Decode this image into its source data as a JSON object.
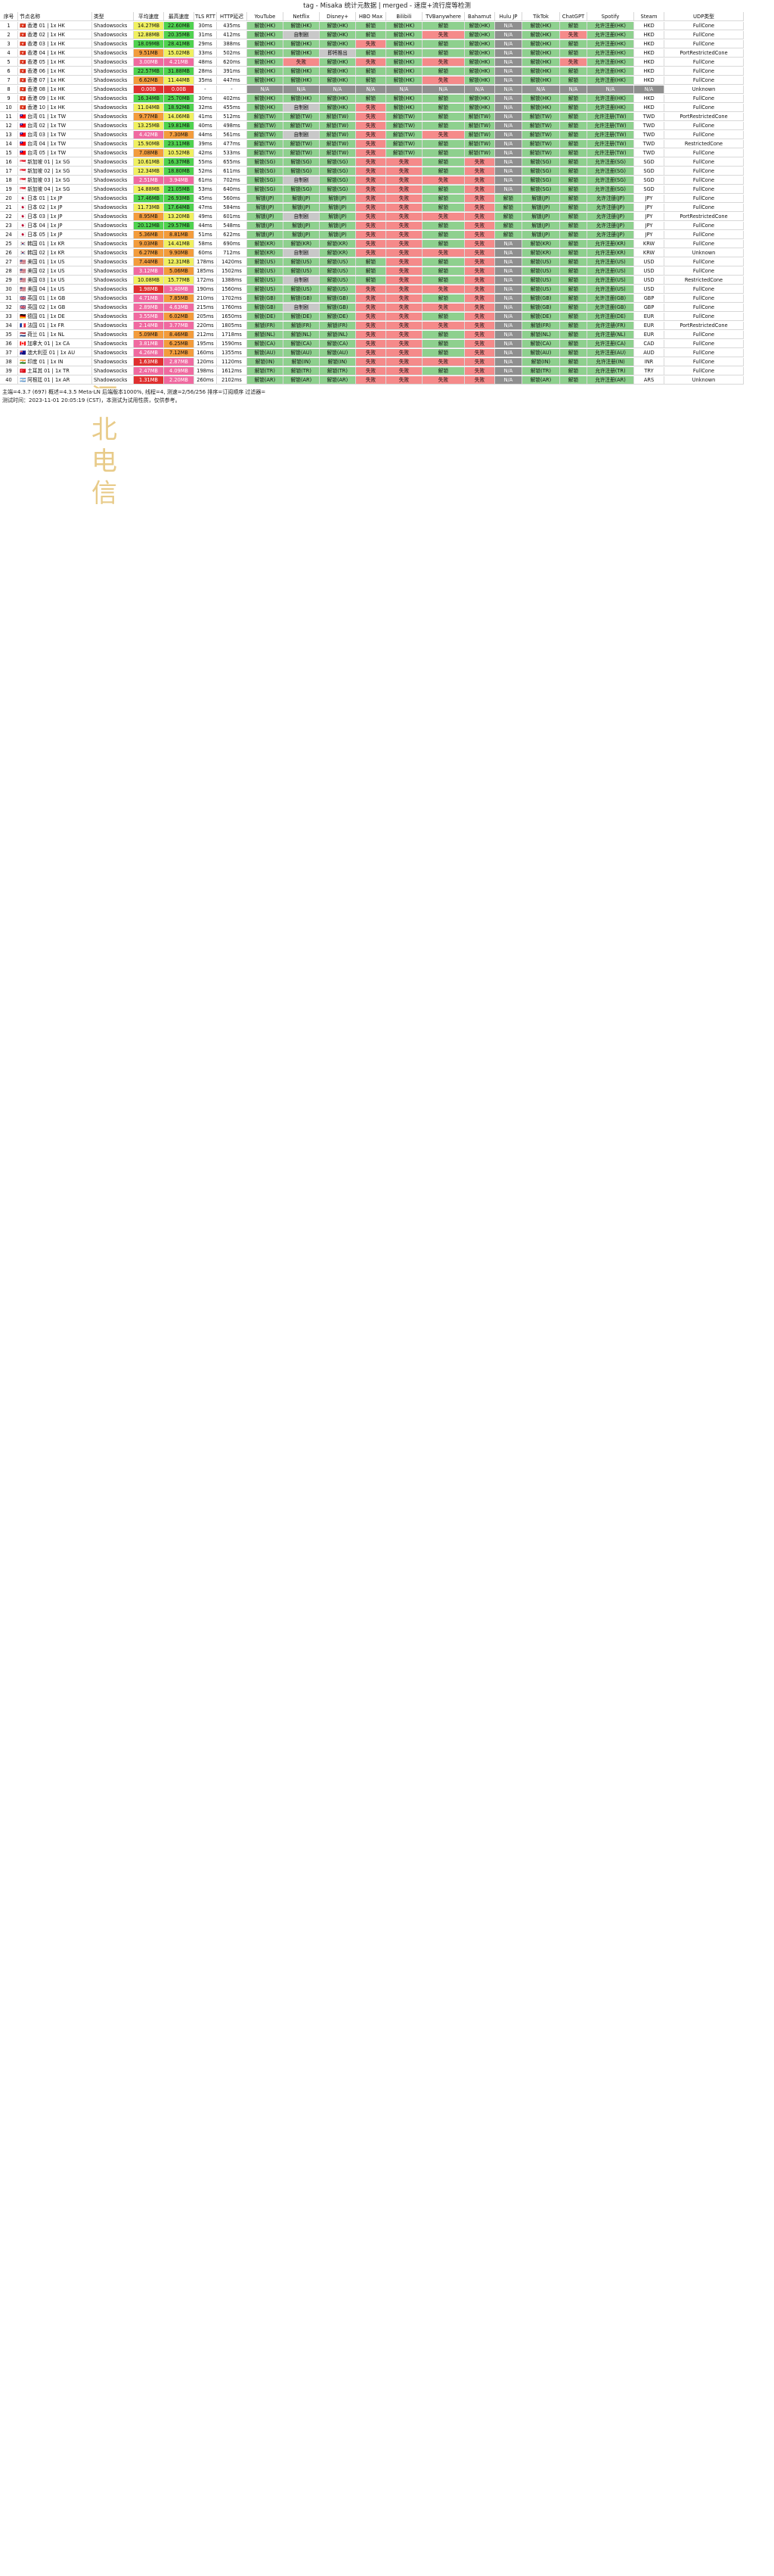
{
  "report": {
    "title": "tag - Misaka 统计元数据 | merged - 速度+流行度等检测",
    "watermark": "河北电信",
    "columns": [
      "序号",
      "节点名称",
      "类型",
      "平均速度",
      "最高速度",
      "TLS RTT",
      "HTTP延迟",
      "YouTube",
      "Netflix",
      "Disney+",
      "HBO Max",
      "Bilibili",
      "TVBanywhere",
      "Bahamut",
      "Hulu JP",
      "TikTok",
      "ChatGPT",
      "Spotify",
      "Steam",
      "UDP类型"
    ],
    "rows": [
      [
        "1",
        "🇭🇰 香港 01 | 1x HK",
        "Shadowsocks",
        "14.27MB",
        "22.60MB",
        "30ms",
        "435ms",
        "解锁(HK)",
        "解锁(HK)",
        "解锁(HK)",
        "解锁",
        "解锁(HK)",
        "解锁",
        "解锁(HK)",
        "N/A",
        "解锁(HK)",
        "解锁",
        "允许注册(HK)",
        "HKD",
        "FullCone"
      ],
      [
        "2",
        "🇭🇰 香港 02 | 1x HK",
        "Shadowsocks",
        "12.88MB",
        "20.35MB",
        "31ms",
        "412ms",
        "解锁(HK)",
        "自制剧",
        "解锁(HK)",
        "解锁",
        "解锁(HK)",
        "失败",
        "解锁(HK)",
        "N/A",
        "解锁(HK)",
        "失败",
        "允许注册(HK)",
        "HKD",
        "FullCone"
      ],
      [
        "3",
        "🇭🇰 香港 03 | 1x HK",
        "Shadowsocks",
        "18.09MB",
        "28.41MB",
        "29ms",
        "388ms",
        "解锁(HK)",
        "解锁(HK)",
        "解锁(HK)",
        "失败",
        "解锁(HK)",
        "解锁",
        "解锁(HK)",
        "N/A",
        "解锁(HK)",
        "解锁",
        "允许注册(HK)",
        "HKD",
        "FullCone"
      ],
      [
        "4",
        "🇭🇰 香港 04 | 1x HK",
        "Shadowsocks",
        "9.51MB",
        "15.02MB",
        "33ms",
        "502ms",
        "解锁(HK)",
        "解锁(HK)",
        "即将推出",
        "解锁",
        "解锁(HK)",
        "解锁",
        "解锁(HK)",
        "N/A",
        "解锁(HK)",
        "解锁",
        "允许注册(HK)",
        "HKD",
        "PortRestrictedCone"
      ],
      [
        "5",
        "🇭🇰 香港 05 | 1x HK",
        "Shadowsocks",
        "3.00MB",
        "4.21MB",
        "48ms",
        "620ms",
        "解锁(HK)",
        "失败",
        "解锁(HK)",
        "失败",
        "解锁(HK)",
        "失败",
        "解锁(HK)",
        "N/A",
        "解锁(HK)",
        "失败",
        "允许注册(HK)",
        "HKD",
        "FullCone"
      ],
      [
        "6",
        "🇭🇰 香港 06 | 1x HK",
        "Shadowsocks",
        "22.57MB",
        "31.88MB",
        "28ms",
        "391ms",
        "解锁(HK)",
        "解锁(HK)",
        "解锁(HK)",
        "解锁",
        "解锁(HK)",
        "解锁",
        "解锁(HK)",
        "N/A",
        "解锁(HK)",
        "解锁",
        "允许注册(HK)",
        "HKD",
        "FullCone"
      ],
      [
        "7",
        "🇭🇰 香港 07 | 1x HK",
        "Shadowsocks",
        "6.62MB",
        "11.44MB",
        "35ms",
        "447ms",
        "解锁(HK)",
        "解锁(HK)",
        "解锁(HK)",
        "解锁",
        "解锁(HK)",
        "失败",
        "解锁(HK)",
        "N/A",
        "解锁(HK)",
        "解锁",
        "允许注册(HK)",
        "HKD",
        "FullCone"
      ],
      [
        "8",
        "🇭🇰 香港 08 | 1x HK",
        "Shadowsocks",
        "0.00B",
        "0.00B",
        "-",
        "-",
        "N/A",
        "N/A",
        "N/A",
        "N/A",
        "N/A",
        "N/A",
        "N/A",
        "N/A",
        "N/A",
        "N/A",
        "N/A",
        "N/A",
        "Unknown"
      ],
      [
        "9",
        "🇭🇰 香港 09 | 1x HK",
        "Shadowsocks",
        "16.34MB",
        "25.70MB",
        "30ms",
        "402ms",
        "解锁(HK)",
        "解锁(HK)",
        "解锁(HK)",
        "解锁",
        "解锁(HK)",
        "解锁",
        "解锁(HK)",
        "N/A",
        "解锁(HK)",
        "解锁",
        "允许注册(HK)",
        "HKD",
        "FullCone"
      ],
      [
        "10",
        "🇭🇰 香港 10 | 1x HK",
        "Shadowsocks",
        "11.04MB",
        "18.92MB",
        "32ms",
        "455ms",
        "解锁(HK)",
        "自制剧",
        "解锁(HK)",
        "失败",
        "解锁(HK)",
        "解锁",
        "解锁(HK)",
        "N/A",
        "解锁(HK)",
        "解锁",
        "允许注册(HK)",
        "HKD",
        "FullCone"
      ],
      [
        "11",
        "🇹🇼 台湾 01 | 1x TW",
        "Shadowsocks",
        "9.77MB",
        "14.06MB",
        "41ms",
        "512ms",
        "解锁(TW)",
        "解锁(TW)",
        "解锁(TW)",
        "失败",
        "解锁(TW)",
        "解锁",
        "解锁(TW)",
        "N/A",
        "解锁(TW)",
        "解锁",
        "允许注册(TW)",
        "TWD",
        "PortRestrictedCone"
      ],
      [
        "12",
        "🇹🇼 台湾 02 | 1x TW",
        "Shadowsocks",
        "13.25MB",
        "19.81MB",
        "40ms",
        "498ms",
        "解锁(TW)",
        "解锁(TW)",
        "解锁(TW)",
        "失败",
        "解锁(TW)",
        "解锁",
        "解锁(TW)",
        "N/A",
        "解锁(TW)",
        "解锁",
        "允许注册(TW)",
        "TWD",
        "FullCone"
      ],
      [
        "13",
        "🇹🇼 台湾 03 | 1x TW",
        "Shadowsocks",
        "4.42MB",
        "7.30MB",
        "44ms",
        "561ms",
        "解锁(TW)",
        "自制剧",
        "解锁(TW)",
        "失败",
        "解锁(TW)",
        "失败",
        "解锁(TW)",
        "N/A",
        "解锁(TW)",
        "解锁",
        "允许注册(TW)",
        "TWD",
        "FullCone"
      ],
      [
        "14",
        "🇹🇼 台湾 04 | 1x TW",
        "Shadowsocks",
        "15.90MB",
        "23.11MB",
        "39ms",
        "477ms",
        "解锁(TW)",
        "解锁(TW)",
        "解锁(TW)",
        "失败",
        "解锁(TW)",
        "解锁",
        "解锁(TW)",
        "N/A",
        "解锁(TW)",
        "解锁",
        "允许注册(TW)",
        "TWD",
        "RestrictedCone"
      ],
      [
        "15",
        "🇹🇼 台湾 05 | 1x TW",
        "Shadowsocks",
        "7.08MB",
        "10.52MB",
        "42ms",
        "533ms",
        "解锁(TW)",
        "解锁(TW)",
        "解锁(TW)",
        "失败",
        "解锁(TW)",
        "解锁",
        "解锁(TW)",
        "N/A",
        "解锁(TW)",
        "解锁",
        "允许注册(TW)",
        "TWD",
        "FullCone"
      ],
      [
        "16",
        "🇸🇬 新加坡 01 | 1x SG",
        "Shadowsocks",
        "10.61MB",
        "16.37MB",
        "55ms",
        "655ms",
        "解锁(SG)",
        "解锁(SG)",
        "解锁(SG)",
        "失败",
        "失败",
        "解锁",
        "失败",
        "N/A",
        "解锁(SG)",
        "解锁",
        "允许注册(SG)",
        "SGD",
        "FullCone"
      ],
      [
        "17",
        "🇸🇬 新加坡 02 | 1x SG",
        "Shadowsocks",
        "12.34MB",
        "18.80MB",
        "52ms",
        "611ms",
        "解锁(SG)",
        "解锁(SG)",
        "解锁(SG)",
        "失败",
        "失败",
        "解锁",
        "失败",
        "N/A",
        "解锁(SG)",
        "解锁",
        "允许注册(SG)",
        "SGD",
        "FullCone"
      ],
      [
        "18",
        "🇸🇬 新加坡 03 | 1x SG",
        "Shadowsocks",
        "2.51MB",
        "3.94MB",
        "61ms",
        "702ms",
        "解锁(SG)",
        "自制剧",
        "解锁(SG)",
        "失败",
        "失败",
        "失败",
        "失败",
        "N/A",
        "解锁(SG)",
        "解锁",
        "允许注册(SG)",
        "SGD",
        "FullCone"
      ],
      [
        "19",
        "🇸🇬 新加坡 04 | 1x SG",
        "Shadowsocks",
        "14.88MB",
        "21.05MB",
        "53ms",
        "640ms",
        "解锁(SG)",
        "解锁(SG)",
        "解锁(SG)",
        "失败",
        "失败",
        "解锁",
        "失败",
        "N/A",
        "解锁(SG)",
        "解锁",
        "允许注册(SG)",
        "SGD",
        "FullCone"
      ],
      [
        "20",
        "🇯🇵 日本 01 | 1x JP",
        "Shadowsocks",
        "17.46MB",
        "26.93MB",
        "45ms",
        "560ms",
        "解锁(JP)",
        "解锁(JP)",
        "解锁(JP)",
        "失败",
        "失败",
        "解锁",
        "失败",
        "解锁",
        "解锁(JP)",
        "解锁",
        "允许注册(JP)",
        "JPY",
        "FullCone"
      ],
      [
        "21",
        "🇯🇵 日本 02 | 1x JP",
        "Shadowsocks",
        "11.73MB",
        "17.64MB",
        "47ms",
        "584ms",
        "解锁(JP)",
        "解锁(JP)",
        "解锁(JP)",
        "失败",
        "失败",
        "解锁",
        "失败",
        "解锁",
        "解锁(JP)",
        "解锁",
        "允许注册(JP)",
        "JPY",
        "FullCone"
      ],
      [
        "22",
        "🇯🇵 日本 03 | 1x JP",
        "Shadowsocks",
        "8.95MB",
        "13.20MB",
        "49ms",
        "601ms",
        "解锁(JP)",
        "自制剧",
        "解锁(JP)",
        "失败",
        "失败",
        "失败",
        "失败",
        "解锁",
        "解锁(JP)",
        "解锁",
        "允许注册(JP)",
        "JPY",
        "PortRestrictedCone"
      ],
      [
        "23",
        "🇯🇵 日本 04 | 1x JP",
        "Shadowsocks",
        "20.12MB",
        "29.57MB",
        "44ms",
        "548ms",
        "解锁(JP)",
        "解锁(JP)",
        "解锁(JP)",
        "失败",
        "失败",
        "解锁",
        "失败",
        "解锁",
        "解锁(JP)",
        "解锁",
        "允许注册(JP)",
        "JPY",
        "FullCone"
      ],
      [
        "24",
        "🇯🇵 日本 05 | 1x JP",
        "Shadowsocks",
        "5.36MB",
        "8.81MB",
        "51ms",
        "622ms",
        "解锁(JP)",
        "解锁(JP)",
        "解锁(JP)",
        "失败",
        "失败",
        "解锁",
        "失败",
        "解锁",
        "解锁(JP)",
        "解锁",
        "允许注册(JP)",
        "JPY",
        "FullCone"
      ],
      [
        "25",
        "🇰🇷 韩国 01 | 1x KR",
        "Shadowsocks",
        "9.03MB",
        "14.41MB",
        "58ms",
        "690ms",
        "解锁(KR)",
        "解锁(KR)",
        "解锁(KR)",
        "失败",
        "失败",
        "解锁",
        "失败",
        "N/A",
        "解锁(KR)",
        "解锁",
        "允许注册(KR)",
        "KRW",
        "FullCone"
      ],
      [
        "26",
        "🇰🇷 韩国 02 | 1x KR",
        "Shadowsocks",
        "6.27MB",
        "9.90MB",
        "60ms",
        "712ms",
        "解锁(KR)",
        "自制剧",
        "解锁(KR)",
        "失败",
        "失败",
        "失败",
        "失败",
        "N/A",
        "解锁(KR)",
        "解锁",
        "允许注册(KR)",
        "KRW",
        "Unknown"
      ],
      [
        "27",
        "🇺🇸 美国 01 | 1x US",
        "Shadowsocks",
        "7.44MB",
        "12.31MB",
        "178ms",
        "1420ms",
        "解锁(US)",
        "解锁(US)",
        "解锁(US)",
        "解锁",
        "失败",
        "解锁",
        "失败",
        "N/A",
        "解锁(US)",
        "解锁",
        "允许注册(US)",
        "USD",
        "FullCone"
      ],
      [
        "28",
        "🇺🇸 美国 02 | 1x US",
        "Shadowsocks",
        "3.12MB",
        "5.06MB",
        "185ms",
        "1502ms",
        "解锁(US)",
        "解锁(US)",
        "解锁(US)",
        "解锁",
        "失败",
        "解锁",
        "失败",
        "N/A",
        "解锁(US)",
        "解锁",
        "允许注册(US)",
        "USD",
        "FullCone"
      ],
      [
        "29",
        "🇺🇸 美国 03 | 1x US",
        "Shadowsocks",
        "10.08MB",
        "15.77MB",
        "172ms",
        "1388ms",
        "解锁(US)",
        "自制剧",
        "解锁(US)",
        "解锁",
        "失败",
        "解锁",
        "失败",
        "N/A",
        "解锁(US)",
        "解锁",
        "允许注册(US)",
        "USD",
        "RestrictedCone"
      ],
      [
        "30",
        "🇺🇸 美国 04 | 1x US",
        "Shadowsocks",
        "1.98MB",
        "3.40MB",
        "190ms",
        "1560ms",
        "解锁(US)",
        "解锁(US)",
        "解锁(US)",
        "失败",
        "失败",
        "失败",
        "失败",
        "N/A",
        "解锁(US)",
        "解锁",
        "允许注册(US)",
        "USD",
        "FullCone"
      ],
      [
        "31",
        "🇬🇧 英国 01 | 1x GB",
        "Shadowsocks",
        "4.71MB",
        "7.85MB",
        "210ms",
        "1702ms",
        "解锁(GB)",
        "解锁(GB)",
        "解锁(GB)",
        "失败",
        "失败",
        "解锁",
        "失败",
        "N/A",
        "解锁(GB)",
        "解锁",
        "允许注册(GB)",
        "GBP",
        "FullCone"
      ],
      [
        "32",
        "🇬🇧 英国 02 | 1x GB",
        "Shadowsocks",
        "2.89MB",
        "4.63MB",
        "215ms",
        "1760ms",
        "解锁(GB)",
        "自制剧",
        "解锁(GB)",
        "失败",
        "失败",
        "失败",
        "失败",
        "N/A",
        "解锁(GB)",
        "解锁",
        "允许注册(GB)",
        "GBP",
        "FullCone"
      ],
      [
        "33",
        "🇩🇪 德国 01 | 1x DE",
        "Shadowsocks",
        "3.55MB",
        "6.02MB",
        "205ms",
        "1650ms",
        "解锁(DE)",
        "解锁(DE)",
        "解锁(DE)",
        "失败",
        "失败",
        "解锁",
        "失败",
        "N/A",
        "解锁(DE)",
        "解锁",
        "允许注册(DE)",
        "EUR",
        "FullCone"
      ],
      [
        "34",
        "🇫🇷 法国 01 | 1x FR",
        "Shadowsocks",
        "2.14MB",
        "3.77MB",
        "220ms",
        "1805ms",
        "解锁(FR)",
        "解锁(FR)",
        "解锁(FR)",
        "失败",
        "失败",
        "失败",
        "失败",
        "N/A",
        "解锁(FR)",
        "解锁",
        "允许注册(FR)",
        "EUR",
        "PortRestrictedCone"
      ],
      [
        "35",
        "🇳🇱 荷兰 01 | 1x NL",
        "Shadowsocks",
        "5.09MB",
        "8.46MB",
        "212ms",
        "1718ms",
        "解锁(NL)",
        "解锁(NL)",
        "解锁(NL)",
        "失败",
        "失败",
        "解锁",
        "失败",
        "N/A",
        "解锁(NL)",
        "解锁",
        "允许注册(NL)",
        "EUR",
        "FullCone"
      ],
      [
        "36",
        "🇨🇦 加拿大 01 | 1x CA",
        "Shadowsocks",
        "3.81MB",
        "6.25MB",
        "195ms",
        "1590ms",
        "解锁(CA)",
        "解锁(CA)",
        "解锁(CA)",
        "失败",
        "失败",
        "解锁",
        "失败",
        "N/A",
        "解锁(CA)",
        "解锁",
        "允许注册(CA)",
        "CAD",
        "FullCone"
      ],
      [
        "37",
        "🇦🇺 澳大利亚 01 | 1x AU",
        "Shadowsocks",
        "4.26MB",
        "7.12MB",
        "160ms",
        "1355ms",
        "解锁(AU)",
        "解锁(AU)",
        "解锁(AU)",
        "失败",
        "失败",
        "解锁",
        "失败",
        "N/A",
        "解锁(AU)",
        "解锁",
        "允许注册(AU)",
        "AUD",
        "FullCone"
      ],
      [
        "38",
        "🇮🇳 印度 01 | 1x IN",
        "Shadowsocks",
        "1.63MB",
        "2.87MB",
        "120ms",
        "1120ms",
        "解锁(IN)",
        "解锁(IN)",
        "解锁(IN)",
        "失败",
        "失败",
        "失败",
        "失败",
        "N/A",
        "解锁(IN)",
        "解锁",
        "允许注册(IN)",
        "INR",
        "FullCone"
      ],
      [
        "39",
        "🇹🇷 土耳其 01 | 1x TR",
        "Shadowsocks",
        "2.47MB",
        "4.09MB",
        "198ms",
        "1612ms",
        "解锁(TR)",
        "解锁(TR)",
        "解锁(TR)",
        "失败",
        "失败",
        "解锁",
        "失败",
        "N/A",
        "解锁(TR)",
        "解锁",
        "允许注册(TR)",
        "TRY",
        "FullCone"
      ],
      [
        "40",
        "🇦🇷 阿根廷 01 | 1x AR",
        "Shadowsocks",
        "1.31MB",
        "2.20MB",
        "260ms",
        "2102ms",
        "解锁(AR)",
        "解锁(AR)",
        "解锁(AR)",
        "失败",
        "失败",
        "失败",
        "失败",
        "N/A",
        "解锁(AR)",
        "解锁",
        "允许注册(AR)",
        "ARS",
        "Unknown"
      ]
    ],
    "footer_lines": [
      "主端=4.3.7 (697) 概述=4.3.5 Meta-LN 后端版本1000%, 线程=4, 测速=2/56/256 排序=订阅顺序 过滤器=",
      "测试时间：2023-11-01 20:05:19 (CST)，本测试为试用性质，仅供参考。"
    ]
  }
}
